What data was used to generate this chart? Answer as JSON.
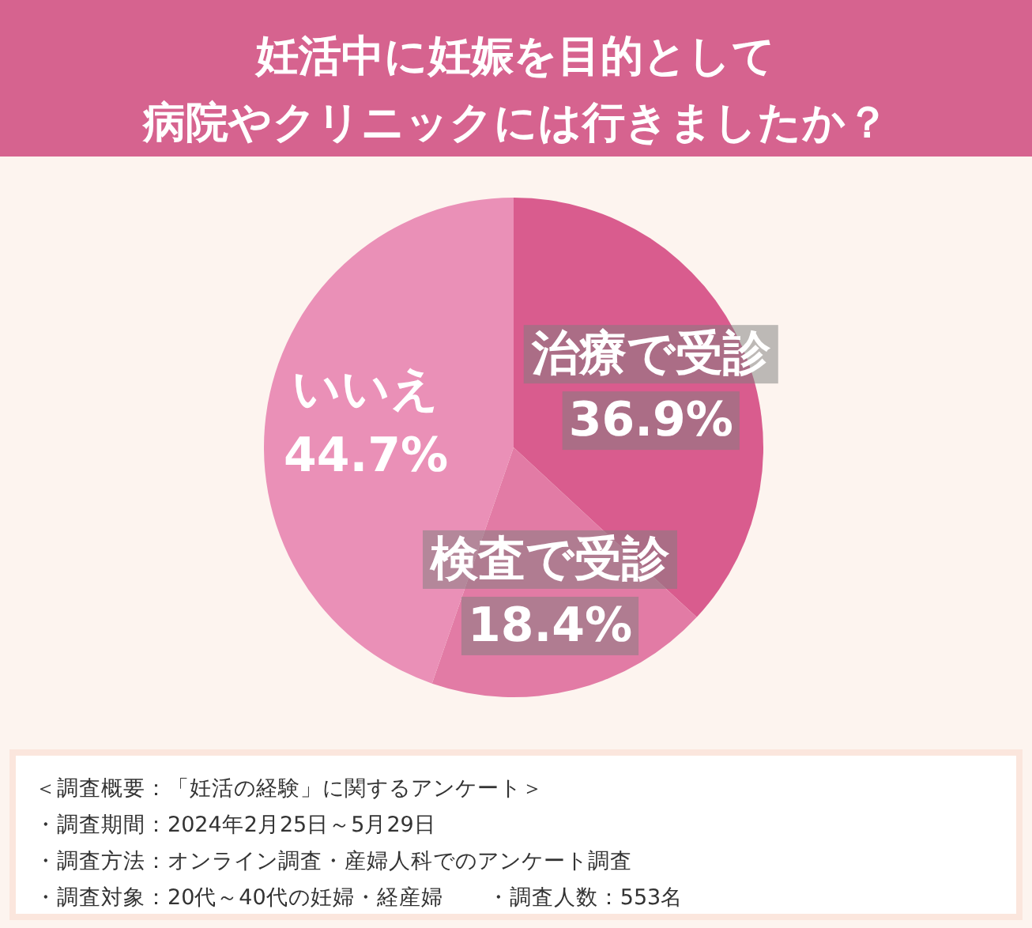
{
  "chart_data": {
    "type": "pie",
    "title": "妊活中に妊娠を目的として",
    "subtitle": "病院やクリニックには行きましたか？",
    "categories": [
      "治療で受診",
      "検査で受診",
      "いいえ"
    ],
    "values": [
      36.9,
      18.4,
      44.7
    ],
    "colors": [
      "#d95c8e",
      "#e27ba5",
      "#ea90b7"
    ],
    "value_labels": [
      "36.9%",
      "18.4%",
      "44.7%"
    ],
    "annotations": [
      "＜調査概要：「妊活の経験」に関するアンケート＞",
      "・調査期間：2024年2月25日～5月29日",
      "・調査方法：オンライン調査・産婦人科でのアンケート調査",
      "・調査対象：20代～40代の妊婦・経産婦　　・調査人数：553名"
    ]
  }
}
